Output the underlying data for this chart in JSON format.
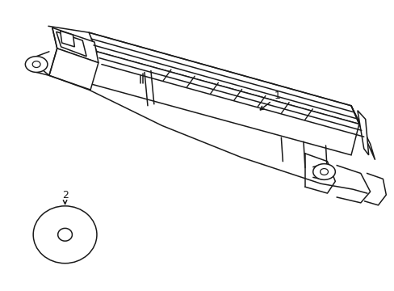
{
  "background_color": "#ffffff",
  "line_color": "#1a1a1a",
  "line_width": 1.1,
  "label1": "1",
  "label2": "2",
  "figsize": [
    4.89,
    3.6
  ],
  "dpi": 100
}
